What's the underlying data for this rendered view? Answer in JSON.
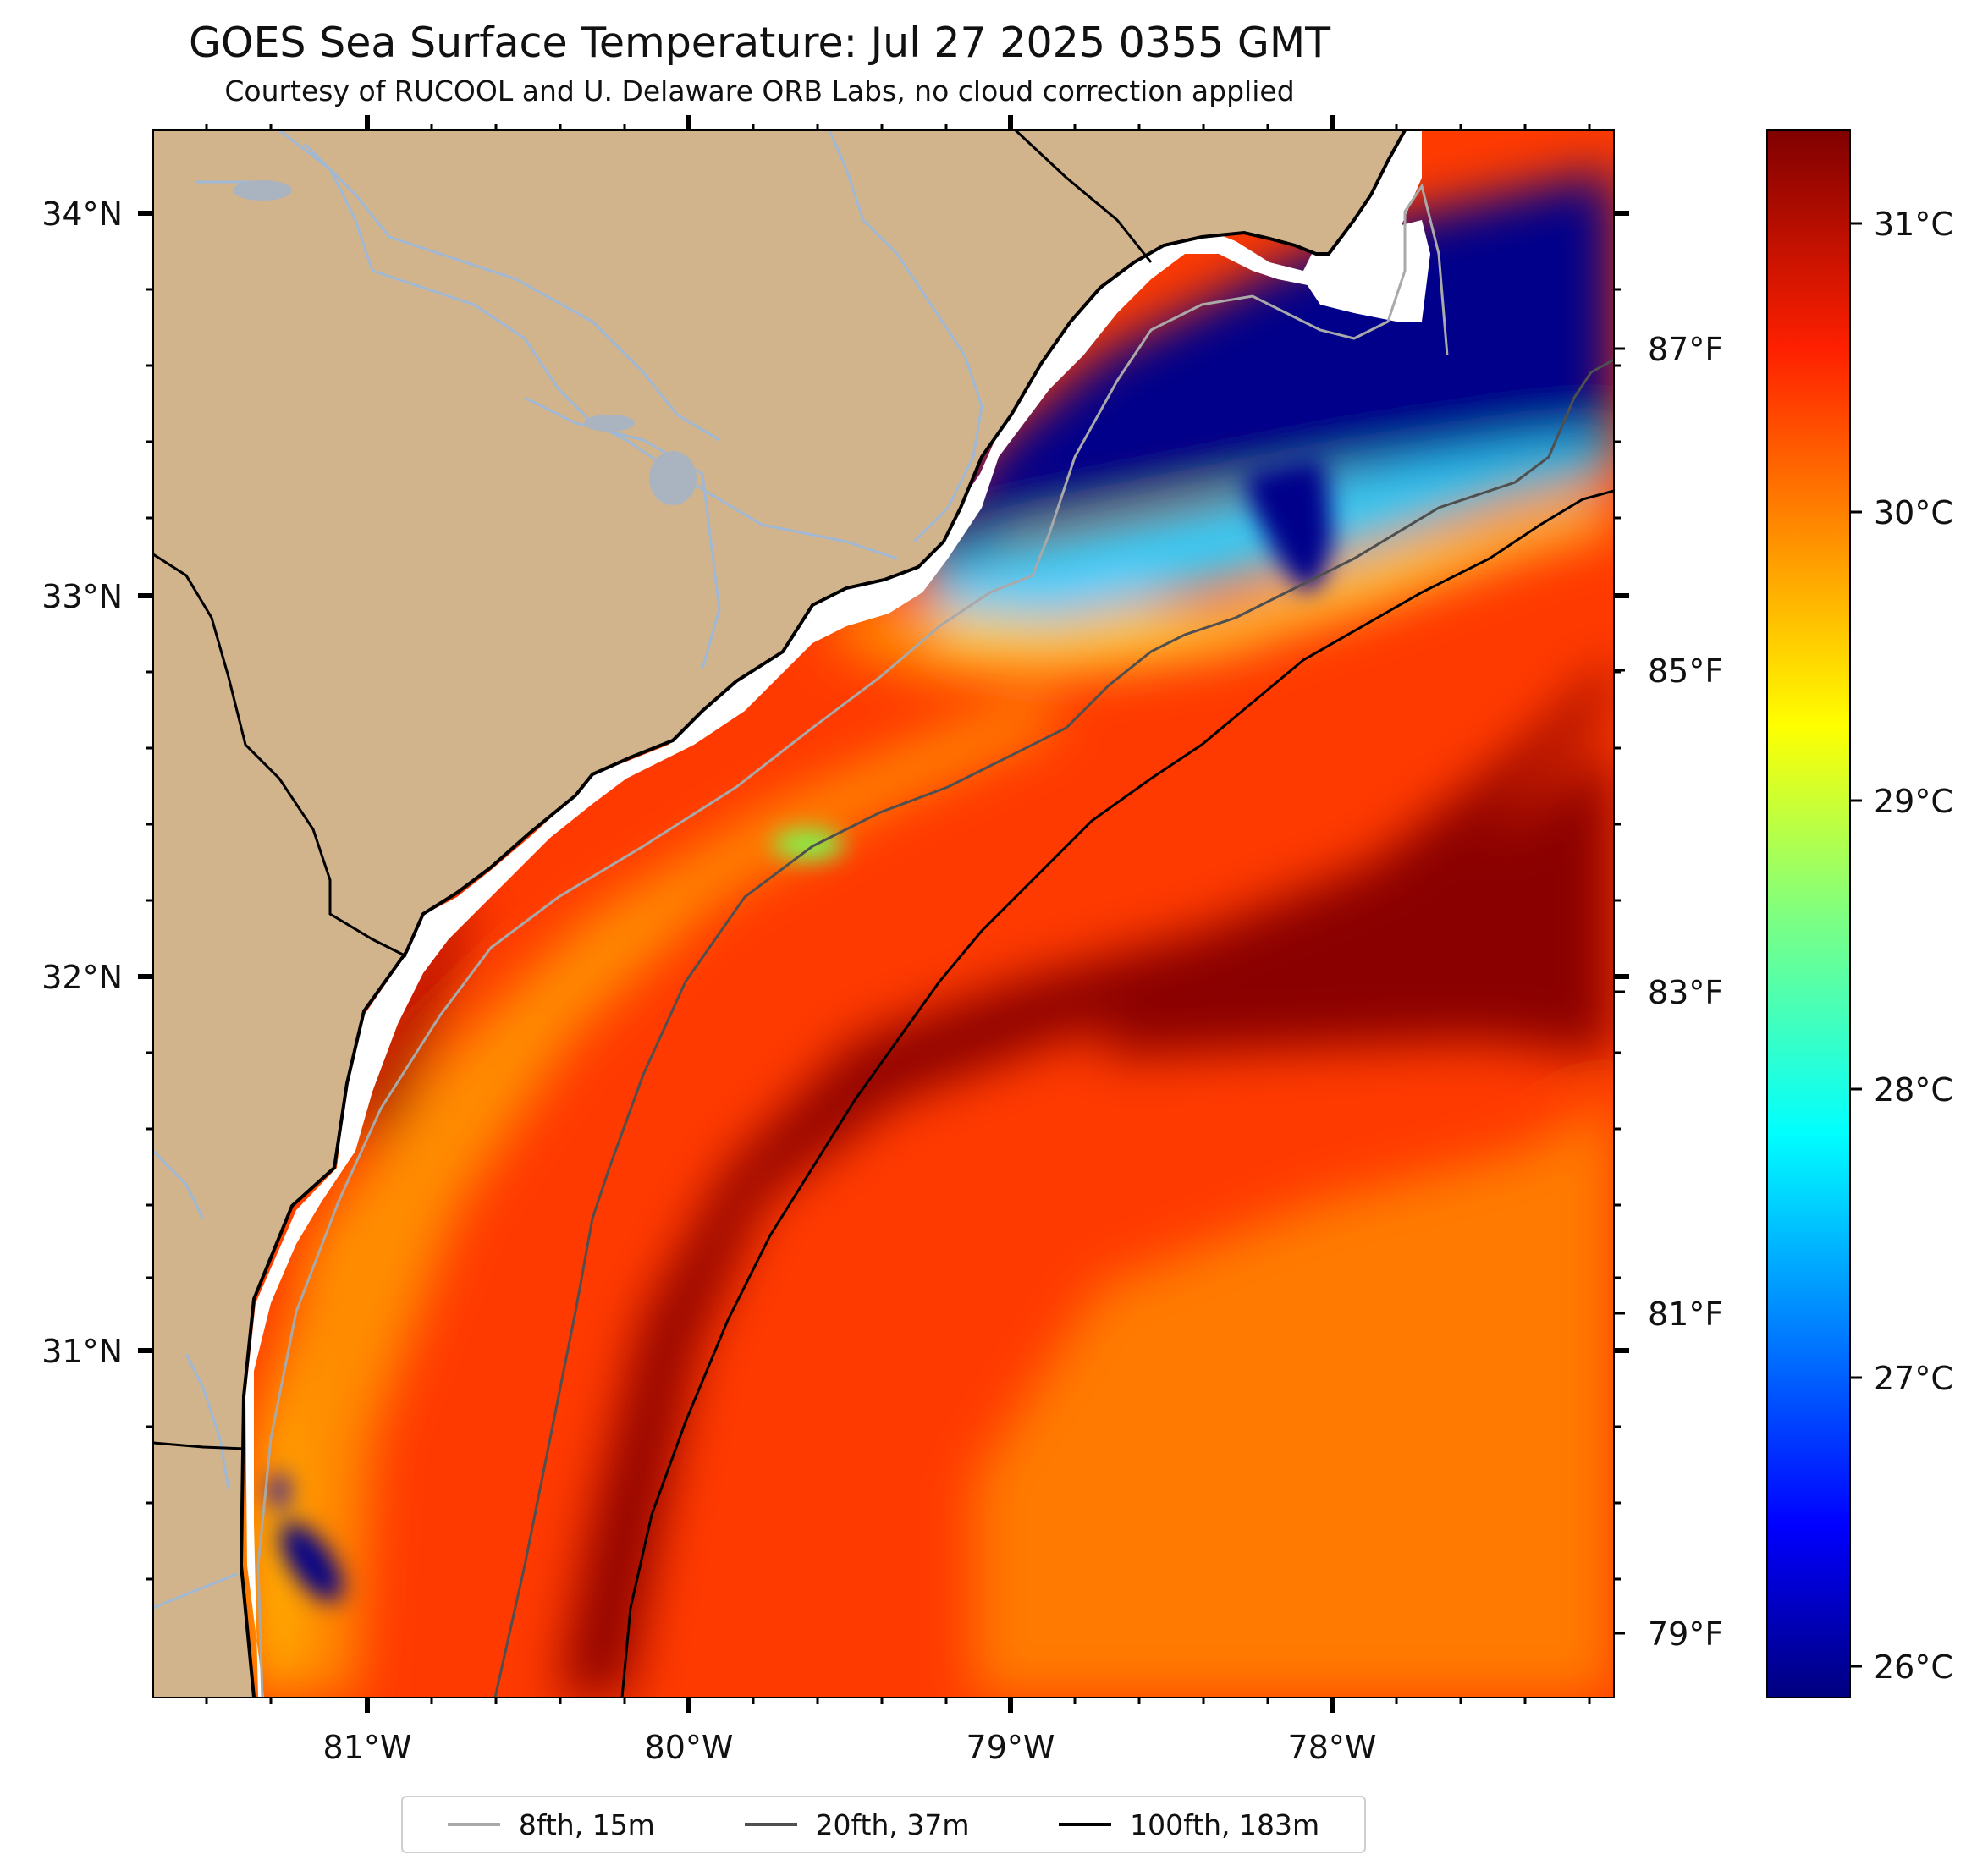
{
  "title": "GOES Sea Surface Temperature: Jul 27 2025 0355 GMT",
  "subtitle": "Courtesy of RUCOOL and U. Delaware ORB Labs, no cloud correction applied",
  "axes": {
    "lat_ticks": [
      "34°N",
      "33°N",
      "32°N",
      "31°N"
    ],
    "lon_ticks": [
      "81°W",
      "80°W",
      "79°W",
      "78°W"
    ],
    "fahrenheit_ticks": [
      "87°F",
      "85°F",
      "83°F",
      "81°F",
      "79°F"
    ]
  },
  "colorbar": {
    "ticks": [
      "31°C",
      "30°C",
      "29°C",
      "28°C",
      "27°C",
      "26°C"
    ],
    "range_c": [
      25.9,
      31.3
    ],
    "colormap": "jet",
    "colors": [
      "#00007f",
      "#0000ff",
      "#007fff",
      "#00ffff",
      "#7fff7f",
      "#ffff00",
      "#ff7f00",
      "#ff0000",
      "#7f0000"
    ]
  },
  "map": {
    "lon_range": [
      -81.67,
      -77.1
    ],
    "lat_range": [
      30.1,
      34.2
    ],
    "land_color": "#d2b48c",
    "river_color": "#9fb8d6"
  },
  "legend": {
    "items": [
      {
        "label": "8fth, 15m",
        "color": "#a9a9a9"
      },
      {
        "label": "20fth, 37m",
        "color": "#4f4f4f"
      },
      {
        "label": "100fth, 183m",
        "color": "#000000"
      }
    ]
  }
}
